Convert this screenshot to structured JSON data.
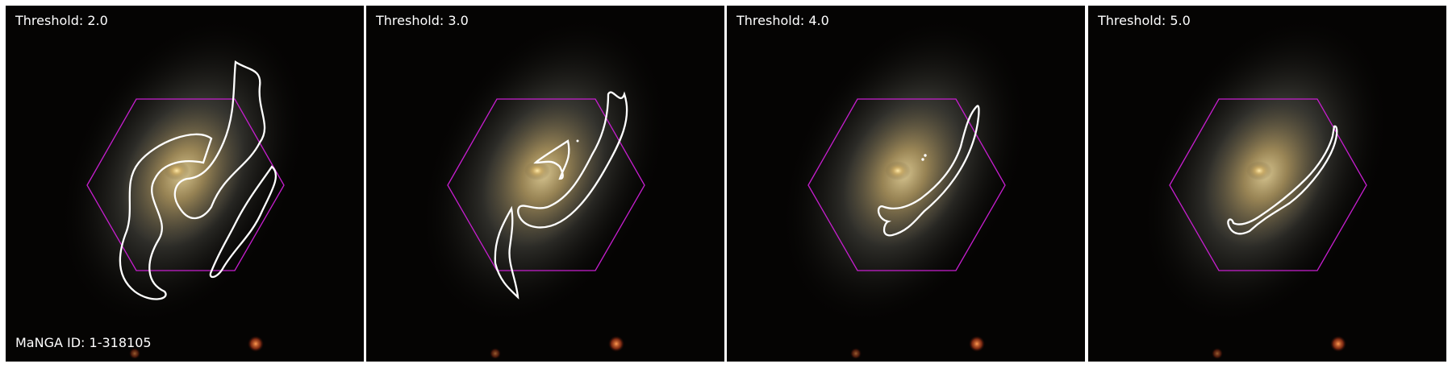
{
  "panels": [
    {
      "threshold_label": "Threshold: 2.0"
    },
    {
      "threshold_label": "Threshold: 3.0"
    },
    {
      "threshold_label": "Threshold: 4.0"
    },
    {
      "threshold_label": "Threshold: 5.0"
    }
  ],
  "manga_id_label": "MaNGA ID: 1-318105",
  "colors": {
    "background": "#050403",
    "contour": "#ffffff",
    "ifu_hexagon": "#c71ecf",
    "label_text": "#ffffff"
  }
}
